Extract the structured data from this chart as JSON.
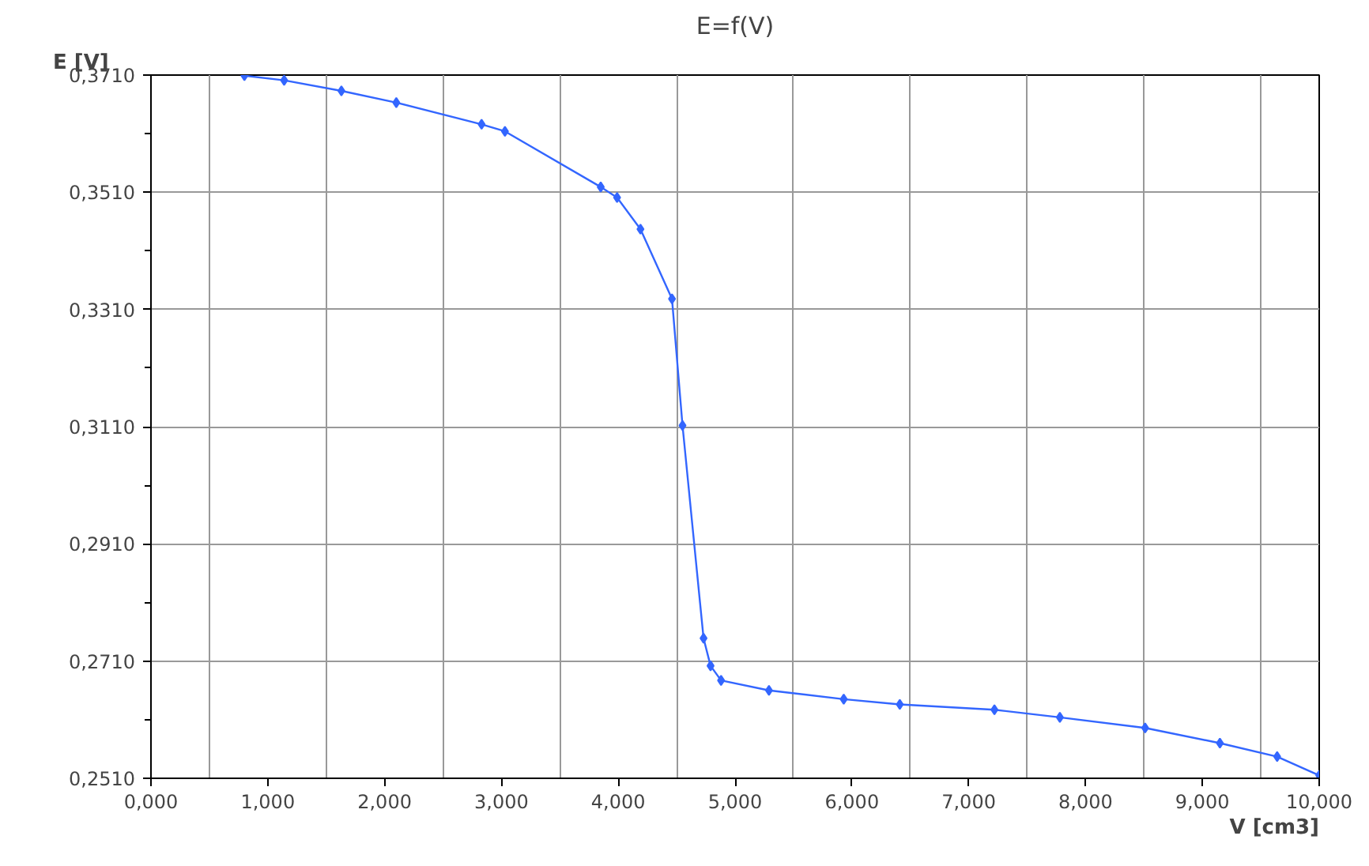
{
  "chart_data": {
    "type": "line",
    "title": "E=f(V)",
    "xlabel": "V [cm3]",
    "ylabel": "E [V]",
    "x": [
      0.8,
      1.14,
      1.63,
      2.1,
      2.83,
      3.03,
      3.85,
      3.99,
      4.19,
      4.46,
      4.55,
      4.73,
      4.79,
      4.88,
      5.29,
      5.93,
      6.41,
      7.22,
      7.78,
      8.51,
      9.15,
      9.64,
      10.0
    ],
    "series": [
      {
        "color": "#3366ff",
        "values": [
          0.3709,
          0.3701,
          0.3683,
          0.3663,
          0.3626,
          0.3614,
          0.3519,
          0.3501,
          0.3447,
          0.3328,
          0.3112,
          0.2749,
          0.2702,
          0.2677,
          0.266,
          0.2645,
          0.2636,
          0.2627,
          0.2614,
          0.2596,
          0.257,
          0.2547,
          0.2515
        ]
      }
    ],
    "xlim": [
      0,
      10
    ],
    "ylim": [
      0.251,
      0.371
    ],
    "xticks": [
      {
        "value": 0,
        "label": "0,000"
      },
      {
        "value": 1,
        "label": "1,000"
      },
      {
        "value": 2,
        "label": "2,000"
      },
      {
        "value": 3,
        "label": "3,000"
      },
      {
        "value": 4,
        "label": "4,000"
      },
      {
        "value": 5,
        "label": "5,000"
      },
      {
        "value": 6,
        "label": "6,000"
      },
      {
        "value": 7,
        "label": "7,000"
      },
      {
        "value": 8,
        "label": "8,000"
      },
      {
        "value": 9,
        "label": "9,000"
      },
      {
        "value": 10,
        "label": "10,000"
      }
    ],
    "yticks": [
      {
        "value": 0.251,
        "label": "0,2510"
      },
      {
        "value": 0.271,
        "label": "0,2710"
      },
      {
        "value": 0.291,
        "label": "0,2910"
      },
      {
        "value": 0.311,
        "label": "0,3110"
      },
      {
        "value": 0.331,
        "label": "0,3310"
      },
      {
        "value": 0.351,
        "label": "0,3510"
      },
      {
        "value": 0.371,
        "label": "0,3710"
      }
    ],
    "grid": true,
    "marker": "diamond",
    "line_style": "solid"
  }
}
